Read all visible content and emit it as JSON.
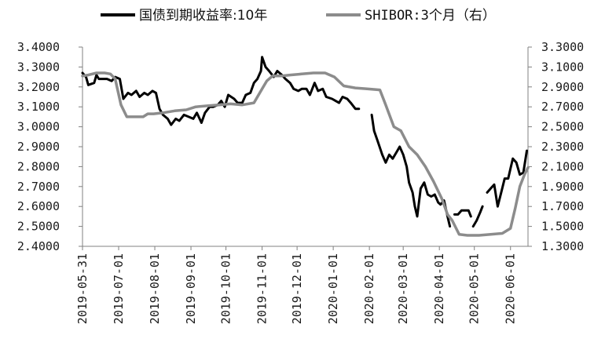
{
  "chart_data": {
    "type": "line",
    "title": "",
    "xlabel": "",
    "ylabel": "",
    "x_ticks": [
      "2019-05-31",
      "2019-07-01",
      "2019-08-01",
      "2019-09-01",
      "2019-10-01",
      "2019-11-01",
      "2019-12-01",
      "2020-01-01",
      "2020-02-01",
      "2020-03-01",
      "2020-04-01",
      "2020-05-01",
      "2020-06-01"
    ],
    "x_range": [
      "2019-05-31",
      "2020-06-16"
    ],
    "y_left": {
      "ticks": [
        "2.4000",
        "2.5000",
        "2.6000",
        "2.7000",
        "2.8000",
        "2.9000",
        "3.0000",
        "3.1000",
        "3.2000",
        "3.3000",
        "3.4000"
      ],
      "ylim": [
        2.4,
        3.4
      ]
    },
    "y_right": {
      "ticks": [
        "1.3000",
        "1.5000",
        "1.7000",
        "1.9000",
        "2.1000",
        "2.3000",
        "2.5000",
        "2.7000",
        "2.9000",
        "3.1000",
        "3.3000"
      ],
      "ylim": [
        1.3,
        3.3
      ]
    },
    "grid": false,
    "legend_position": "top",
    "series": [
      {
        "name": "国债到期收益率:10年",
        "axis": "left",
        "color": "#000000",
        "points": [
          [
            "2019-05-31",
            3.27
          ],
          [
            "2019-06-03",
            3.25
          ],
          [
            "2019-06-05",
            3.21
          ],
          [
            "2019-06-10",
            3.22
          ],
          [
            "2019-06-12",
            3.26
          ],
          [
            "2019-06-14",
            3.24
          ],
          [
            "2019-06-18",
            3.24
          ],
          [
            "2019-06-21",
            3.24
          ],
          [
            "2019-06-25",
            3.23
          ],
          [
            "2019-06-28",
            3.25
          ],
          [
            "2019-07-02",
            3.24
          ],
          [
            "2019-07-05",
            3.14
          ],
          [
            "2019-07-09",
            3.17
          ],
          [
            "2019-07-12",
            3.16
          ],
          [
            "2019-07-16",
            3.18
          ],
          [
            "2019-07-19",
            3.15
          ],
          [
            "2019-07-23",
            3.17
          ],
          [
            "2019-07-26",
            3.16
          ],
          [
            "2019-07-30",
            3.18
          ],
          [
            "2019-08-02",
            3.17
          ],
          [
            "2019-08-05",
            3.09
          ],
          [
            "2019-08-08",
            3.06
          ],
          [
            "2019-08-12",
            3.04
          ],
          [
            "2019-08-15",
            3.01
          ],
          [
            "2019-08-19",
            3.04
          ],
          [
            "2019-08-22",
            3.03
          ],
          [
            "2019-08-26",
            3.06
          ],
          [
            "2019-08-30",
            3.05
          ],
          [
            "2019-09-03",
            3.04
          ],
          [
            "2019-09-06",
            3.07
          ],
          [
            "2019-09-10",
            3.02
          ],
          [
            "2019-09-13",
            3.07
          ],
          [
            "2019-09-17",
            3.1
          ],
          [
            "2019-09-20",
            3.1
          ],
          [
            "2019-09-24",
            3.11
          ],
          [
            "2019-09-27",
            3.13
          ],
          [
            "2019-09-30",
            3.1
          ],
          [
            "2019-10-03",
            3.16
          ],
          [
            "2019-10-08",
            3.14
          ],
          [
            "2019-10-11",
            3.12
          ],
          [
            "2019-10-15",
            3.12
          ],
          [
            "2019-10-18",
            3.16
          ],
          [
            "2019-10-22",
            3.17
          ],
          [
            "2019-10-25",
            3.22
          ],
          [
            "2019-10-28",
            3.24
          ],
          [
            "2019-10-31",
            3.28
          ],
          [
            "2019-11-01",
            3.35
          ],
          [
            "2019-11-04",
            3.3
          ],
          [
            "2019-11-07",
            3.28
          ],
          [
            "2019-11-11",
            3.25
          ],
          [
            "2019-11-14",
            3.28
          ],
          [
            "2019-11-18",
            3.26
          ],
          [
            "2019-11-21",
            3.24
          ],
          [
            "2019-11-25",
            3.22
          ],
          [
            "2019-11-28",
            3.19
          ],
          [
            "2019-12-02",
            3.18
          ],
          [
            "2019-12-05",
            3.19
          ],
          [
            "2019-12-09",
            3.19
          ],
          [
            "2019-12-12",
            3.16
          ],
          [
            "2019-12-16",
            3.22
          ],
          [
            "2019-12-19",
            3.18
          ],
          [
            "2019-12-23",
            3.19
          ],
          [
            "2019-12-26",
            3.15
          ],
          [
            "2019-12-31",
            3.14
          ],
          [
            "2020-01-03",
            3.13
          ],
          [
            "2020-01-06",
            3.12
          ],
          [
            "2020-01-09",
            3.15
          ],
          [
            "2020-01-13",
            3.14
          ],
          [
            "2020-01-16",
            3.12
          ],
          [
            "2020-01-20",
            3.09
          ],
          [
            "2020-01-23",
            3.09
          ],
          null,
          [
            "2020-02-03",
            3.06
          ],
          [
            "2020-02-05",
            2.98
          ],
          [
            "2020-02-08",
            2.93
          ],
          [
            "2020-02-12",
            2.86
          ],
          [
            "2020-02-15",
            2.82
          ],
          [
            "2020-02-18",
            2.86
          ],
          [
            "2020-02-21",
            2.84
          ],
          [
            "2020-02-24",
            2.87
          ],
          [
            "2020-02-27",
            2.9
          ],
          [
            "2020-03-01",
            2.86
          ],
          [
            "2020-03-04",
            2.8
          ],
          [
            "2020-03-06",
            2.72
          ],
          [
            "2020-03-09",
            2.67
          ],
          [
            "2020-03-11",
            2.6
          ],
          [
            "2020-03-13",
            2.55
          ],
          [
            "2020-03-16",
            2.69
          ],
          [
            "2020-03-19",
            2.72
          ],
          [
            "2020-03-22",
            2.66
          ],
          [
            "2020-03-25",
            2.65
          ],
          [
            "2020-03-28",
            2.66
          ],
          [
            "2020-03-31",
            2.62
          ],
          [
            "2020-04-02",
            2.61
          ],
          [
            "2020-04-05",
            2.63
          ],
          [
            "2020-04-08",
            2.55
          ],
          [
            "2020-04-10",
            2.5
          ],
          null,
          [
            "2020-04-14",
            2.56
          ],
          [
            "2020-04-17",
            2.56
          ],
          [
            "2020-04-20",
            2.58
          ],
          [
            "2020-04-23",
            2.58
          ],
          [
            "2020-04-26",
            2.58
          ],
          [
            "2020-04-28",
            2.55
          ],
          null,
          [
            "2020-04-30",
            2.5
          ],
          [
            "2020-05-03",
            2.53
          ],
          [
            "2020-05-06",
            2.57
          ],
          [
            "2020-05-08",
            2.6
          ],
          null,
          [
            "2020-05-12",
            2.67
          ],
          [
            "2020-05-15",
            2.69
          ],
          [
            "2020-05-18",
            2.71
          ],
          [
            "2020-05-21",
            2.6
          ],
          [
            "2020-05-24",
            2.67
          ],
          [
            "2020-05-27",
            2.74
          ],
          [
            "2020-05-30",
            2.74
          ],
          [
            "2020-06-01",
            2.79
          ],
          [
            "2020-06-03",
            2.84
          ],
          [
            "2020-06-06",
            2.82
          ],
          [
            "2020-06-09",
            2.76
          ],
          [
            "2020-06-12",
            2.77
          ],
          [
            "2020-06-15",
            2.88
          ]
        ]
      },
      {
        "name": "SHIBOR:3个月（右）",
        "axis": "right",
        "color": "#8c8c8c",
        "points": [
          [
            "2019-05-31",
            3.01
          ],
          [
            "2019-06-05",
            3.02
          ],
          [
            "2019-06-12",
            3.04
          ],
          [
            "2019-06-19",
            3.04
          ],
          [
            "2019-06-24",
            3.03
          ],
          [
            "2019-06-28",
            2.98
          ],
          [
            "2019-07-03",
            2.72
          ],
          [
            "2019-07-08",
            2.6
          ],
          [
            "2019-07-15",
            2.6
          ],
          [
            "2019-07-22",
            2.6
          ],
          [
            "2019-07-26",
            2.63
          ],
          [
            "2019-07-31",
            2.63
          ],
          [
            "2019-08-08",
            2.64
          ],
          [
            "2019-08-18",
            2.66
          ],
          [
            "2019-08-28",
            2.67
          ],
          [
            "2019-09-05",
            2.7
          ],
          [
            "2019-09-15",
            2.71
          ],
          [
            "2019-09-25",
            2.72
          ],
          [
            "2019-10-05",
            2.73
          ],
          [
            "2019-10-15",
            2.72
          ],
          [
            "2019-10-25",
            2.74
          ],
          [
            "2019-11-01",
            2.88
          ],
          [
            "2019-11-05",
            2.96
          ],
          [
            "2019-11-10",
            3.01
          ],
          [
            "2019-11-18",
            3.01
          ],
          [
            "2019-11-25",
            3.02
          ],
          [
            "2019-12-05",
            3.03
          ],
          [
            "2019-12-15",
            3.04
          ],
          [
            "2019-12-25",
            3.04
          ],
          [
            "2020-01-02",
            3.0
          ],
          [
            "2020-01-10",
            2.91
          ],
          [
            "2020-01-20",
            2.89
          ],
          [
            "2020-01-30",
            2.88
          ],
          [
            "2020-02-10",
            2.87
          ],
          [
            "2020-02-15",
            2.72
          ],
          [
            "2020-02-22",
            2.5
          ],
          [
            "2020-02-28",
            2.46
          ],
          [
            "2020-03-06",
            2.3
          ],
          [
            "2020-03-13",
            2.22
          ],
          [
            "2020-03-20",
            2.1
          ],
          [
            "2020-03-27",
            1.95
          ],
          [
            "2020-04-03",
            1.78
          ],
          [
            "2020-04-08",
            1.62
          ],
          [
            "2020-04-12",
            1.56
          ],
          [
            "2020-04-18",
            1.42
          ],
          [
            "2020-04-25",
            1.41
          ],
          [
            "2020-05-05",
            1.41
          ],
          [
            "2020-05-15",
            1.42
          ],
          [
            "2020-05-25",
            1.43
          ],
          [
            "2020-06-01",
            1.48
          ],
          [
            "2020-06-05",
            1.68
          ],
          [
            "2020-06-09",
            1.9
          ],
          [
            "2020-06-13",
            2.02
          ],
          [
            "2020-06-16",
            2.09
          ]
        ]
      }
    ]
  }
}
